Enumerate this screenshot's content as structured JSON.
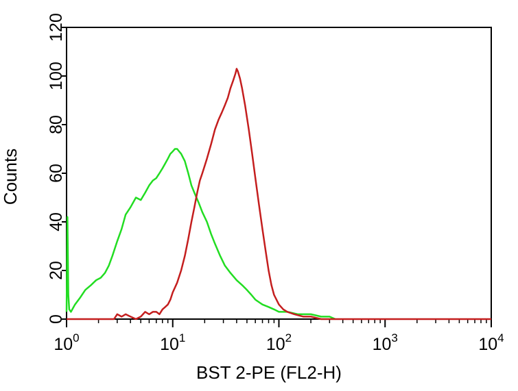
{
  "chart_data": {
    "type": "line",
    "title": "",
    "xlabel": "BST 2-PE  (FL2-H)",
    "ylabel": "Counts",
    "x_scale": "log",
    "xlim": [
      1,
      10000
    ],
    "ylim": [
      0,
      120
    ],
    "x_ticks": [
      {
        "value": 1,
        "base": "10",
        "exp": "0"
      },
      {
        "value": 10,
        "base": "10",
        "exp": "1"
      },
      {
        "value": 100,
        "base": "10",
        "exp": "2"
      },
      {
        "value": 1000,
        "base": "10",
        "exp": "3"
      },
      {
        "value": 10000,
        "base": "10",
        "exp": "4"
      }
    ],
    "y_ticks": [
      "0",
      "20",
      "40",
      "60",
      "80",
      "100",
      "120"
    ],
    "grid": false,
    "legend": "none",
    "series": [
      {
        "color": "#22dd22",
        "points": [
          [
            1.0,
            3
          ],
          [
            1.02,
            42
          ],
          [
            1.04,
            10
          ],
          [
            1.06,
            4
          ],
          [
            1.1,
            3
          ],
          [
            1.2,
            6
          ],
          [
            1.35,
            9
          ],
          [
            1.5,
            12
          ],
          [
            1.7,
            14
          ],
          [
            1.9,
            16
          ],
          [
            2.1,
            17
          ],
          [
            2.3,
            19
          ],
          [
            2.5,
            22
          ],
          [
            2.7,
            26
          ],
          [
            3.0,
            32
          ],
          [
            3.3,
            37
          ],
          [
            3.6,
            43
          ],
          [
            4.0,
            46
          ],
          [
            4.5,
            50
          ],
          [
            5.0,
            49
          ],
          [
            5.5,
            52
          ],
          [
            6.0,
            55
          ],
          [
            6.5,
            57
          ],
          [
            7.0,
            58
          ],
          [
            7.5,
            60
          ],
          [
            8.0,
            62
          ],
          [
            8.5,
            64
          ],
          [
            9.0,
            66
          ],
          [
            9.5,
            68
          ],
          [
            10.0,
            69
          ],
          [
            10.5,
            70
          ],
          [
            11.0,
            70
          ],
          [
            11.5,
            69
          ],
          [
            12.0,
            68
          ],
          [
            13.0,
            65
          ],
          [
            14.0,
            60
          ],
          [
            15.0,
            55
          ],
          [
            16.0,
            52
          ],
          [
            17.5,
            48
          ],
          [
            19.0,
            44
          ],
          [
            21.0,
            40
          ],
          [
            23.0,
            35
          ],
          [
            25.0,
            31
          ],
          [
            28.0,
            26
          ],
          [
            31.0,
            22
          ],
          [
            35.0,
            19
          ],
          [
            40.0,
            16
          ],
          [
            45.0,
            14
          ],
          [
            50.0,
            12
          ],
          [
            55.0,
            10
          ],
          [
            60.0,
            8
          ],
          [
            70.0,
            6
          ],
          [
            80.0,
            5
          ],
          [
            90.0,
            4
          ],
          [
            100.0,
            3
          ],
          [
            120.0,
            3
          ],
          [
            150.0,
            2
          ],
          [
            200.0,
            2
          ],
          [
            250.0,
            1
          ],
          [
            300.0,
            1
          ],
          [
            340.0,
            0
          ]
        ]
      },
      {
        "color": "#c41e1e",
        "points": [
          [
            1.0,
            0
          ],
          [
            2.0,
            0
          ],
          [
            2.8,
            0
          ],
          [
            3.0,
            2
          ],
          [
            3.3,
            1
          ],
          [
            3.6,
            2
          ],
          [
            4.0,
            1
          ],
          [
            4.5,
            0
          ],
          [
            5.0,
            1
          ],
          [
            5.5,
            3
          ],
          [
            6.0,
            2
          ],
          [
            6.5,
            3
          ],
          [
            7.0,
            3
          ],
          [
            7.5,
            2
          ],
          [
            8.0,
            4
          ],
          [
            8.5,
            5
          ],
          [
            9.0,
            6
          ],
          [
            9.5,
            8
          ],
          [
            10.0,
            11
          ],
          [
            11.0,
            15
          ],
          [
            12.0,
            20
          ],
          [
            13.0,
            26
          ],
          [
            14.0,
            33
          ],
          [
            15.0,
            40
          ],
          [
            16.0,
            46
          ],
          [
            17.0,
            52
          ],
          [
            18.0,
            57
          ],
          [
            19.0,
            60
          ],
          [
            20.0,
            63
          ],
          [
            21.0,
            66
          ],
          [
            23.0,
            72
          ],
          [
            25.0,
            78
          ],
          [
            27.0,
            82
          ],
          [
            29.0,
            85
          ],
          [
            31.0,
            88
          ],
          [
            33.0,
            91
          ],
          [
            35.0,
            95
          ],
          [
            37.0,
            98
          ],
          [
            39.0,
            101
          ],
          [
            40.0,
            103
          ],
          [
            41.0,
            102
          ],
          [
            43.0,
            99
          ],
          [
            45.0,
            95
          ],
          [
            48.0,
            88
          ],
          [
            52.0,
            78
          ],
          [
            56.0,
            68
          ],
          [
            60.0,
            58
          ],
          [
            65.0,
            47
          ],
          [
            70.0,
            37
          ],
          [
            75.0,
            28
          ],
          [
            80.0,
            20
          ],
          [
            85.0,
            14
          ],
          [
            90.0,
            10
          ],
          [
            100.0,
            6
          ],
          [
            110.0,
            4
          ],
          [
            120.0,
            3
          ],
          [
            140.0,
            2
          ],
          [
            170.0,
            1
          ],
          [
            200.0,
            1
          ],
          [
            250.0,
            0
          ],
          [
            400.0,
            0
          ],
          [
            1000.0,
            0
          ],
          [
            10000.0,
            0
          ]
        ]
      }
    ]
  }
}
